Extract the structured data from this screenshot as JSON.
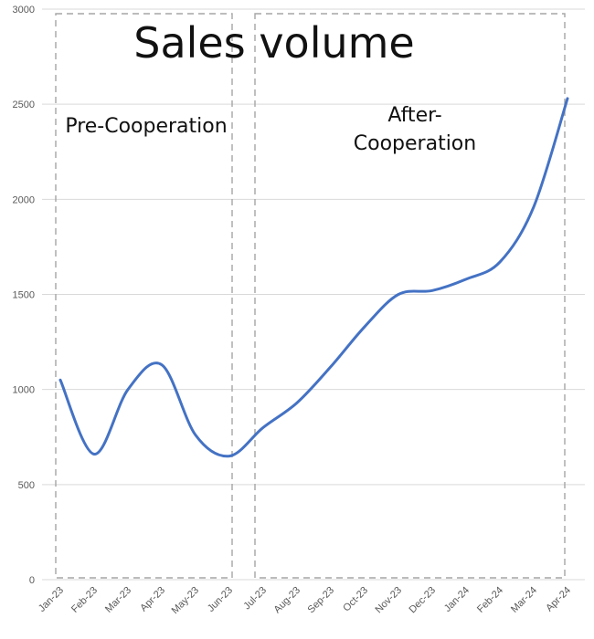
{
  "chart_data": {
    "type": "line",
    "title": "Sales volume",
    "xlabel": "",
    "ylabel": "",
    "categories": [
      "Jan-23",
      "Feb-23",
      "Mar-23",
      "Apr-23",
      "May-23",
      "Jun-23",
      "Jul-23",
      "Aug-23",
      "Sep-23",
      "Oct-23",
      "Nov-23",
      "Dec-23",
      "Jan-24",
      "Feb-24",
      "Mar-24",
      "Apr-24"
    ],
    "series": [
      {
        "values": [
          1050,
          660,
          1000,
          1130,
          760,
          650,
          800,
          930,
          1120,
          1330,
          1500,
          1520,
          1580,
          1670,
          1960,
          2530
        ]
      }
    ],
    "ylim": [
      0,
      3000
    ],
    "yticks": [
      0,
      500,
      1000,
      1500,
      2000,
      2500,
      3000
    ],
    "grid": true,
    "annotations": {
      "pre": "Pre-Cooperation",
      "after_line1": "After-",
      "after_line2": "Cooperation"
    },
    "colors": {
      "line": "#4472C4",
      "grid": "#D9D9D9",
      "box": "#A6A6A6",
      "axis_text": "#595959"
    }
  }
}
